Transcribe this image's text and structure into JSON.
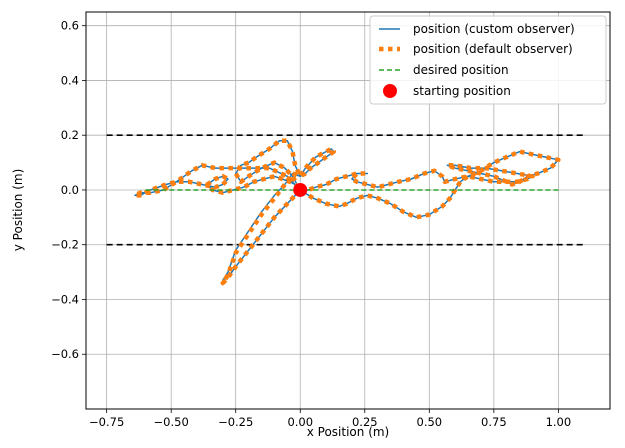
{
  "chart_data": {
    "type": "line",
    "title": "",
    "xlabel": "x Position (m)",
    "ylabel": "y Position (m)",
    "xlim": [
      -0.83,
      1.2
    ],
    "ylim": [
      -0.8,
      0.65
    ],
    "xticks": [
      -0.75,
      -0.5,
      -0.25,
      0.0,
      0.25,
      0.5,
      0.75,
      1.0
    ],
    "xtick_labels": [
      "−0.75",
      "−0.50",
      "−0.25",
      "0.00",
      "0.25",
      "0.50",
      "0.75",
      "1.00"
    ],
    "yticks": [
      -0.6,
      -0.4,
      -0.2,
      0.0,
      0.2,
      0.4,
      0.6
    ],
    "ytick_labels": [
      "−0.6",
      "−0.4",
      "−0.2",
      "0.0",
      "0.2",
      "0.4",
      "0.6"
    ],
    "grid": true,
    "legend_position": "top-right",
    "series": [
      {
        "name": "position (custom observer)",
        "style": "solid",
        "color": "#1f77b4",
        "x": [
          0.0,
          -0.05,
          -0.1,
          -0.15,
          -0.2,
          -0.25,
          -0.28,
          -0.3,
          -0.28,
          -0.25,
          -0.2,
          -0.15,
          -0.1,
          -0.06,
          -0.03,
          0.0,
          0.02,
          0.04,
          0.06,
          0.08,
          0.1,
          0.12,
          0.13,
          0.1,
          0.07,
          0.04,
          0.02,
          0.0,
          -0.02,
          -0.03,
          -0.05,
          -0.08,
          -0.12,
          -0.17,
          -0.2,
          -0.23,
          -0.25,
          -0.23,
          -0.2,
          -0.15,
          -0.1,
          -0.06,
          -0.03,
          0.0,
          -0.05,
          -0.12,
          -0.2,
          -0.28,
          -0.33,
          -0.38,
          -0.42,
          -0.48,
          -0.53,
          -0.58,
          -0.62,
          -0.64,
          -0.62,
          -0.58,
          -0.52,
          -0.48,
          -0.43,
          -0.38,
          -0.33,
          -0.3,
          -0.28,
          -0.3,
          -0.33,
          -0.36,
          -0.34,
          -0.3,
          -0.26,
          -0.22,
          -0.18,
          -0.14,
          -0.1,
          -0.07,
          -0.04,
          -0.02,
          0.0,
          0.05,
          0.1,
          0.15,
          0.18,
          0.2,
          0.22,
          0.26,
          0.3,
          0.35,
          0.4,
          0.45,
          0.5,
          0.55,
          0.58,
          0.6,
          0.62,
          0.65,
          0.7,
          0.75,
          0.8,
          0.85,
          0.9,
          0.95,
          1.0,
          0.97,
          0.92,
          0.88,
          0.85,
          0.82,
          0.8,
          0.75,
          0.7,
          0.65,
          0.6,
          0.57,
          0.6,
          0.66,
          0.72,
          0.78,
          0.84,
          0.9,
          0.88,
          0.84,
          0.8,
          0.75,
          0.7,
          0.65,
          0.6,
          0.56,
          0.55,
          0.52,
          0.48,
          0.43,
          0.38,
          0.34,
          0.3,
          0.26,
          0.22,
          0.2,
          0.22,
          0.26,
          0.22,
          0.18,
          0.14,
          0.12,
          0.1,
          0.06,
          0.03,
          0.0
        ],
        "y": [
          0.0,
          -0.05,
          -0.1,
          -0.16,
          -0.22,
          -0.28,
          -0.32,
          -0.33,
          -0.3,
          -0.22,
          -0.15,
          -0.08,
          -0.02,
          0.02,
          0.06,
          0.05,
          0.08,
          0.1,
          0.12,
          0.13,
          0.14,
          0.15,
          0.14,
          0.12,
          0.1,
          0.08,
          0.06,
          0.05,
          0.09,
          0.14,
          0.18,
          0.18,
          0.15,
          0.12,
          0.1,
          0.09,
          0.06,
          0.03,
          0.05,
          0.08,
          0.1,
          0.08,
          0.05,
          0.0,
          0.05,
          0.08,
          0.08,
          0.08,
          0.08,
          0.09,
          0.07,
          0.03,
          0.0,
          -0.01,
          -0.01,
          -0.02,
          -0.02,
          0.0,
          0.02,
          0.03,
          0.03,
          0.02,
          0.01,
          0.02,
          0.04,
          0.05,
          0.04,
          0.02,
          0.0,
          -0.01,
          0.0,
          0.01,
          0.03,
          0.04,
          0.05,
          0.04,
          0.03,
          0.02,
          0.0,
          -0.03,
          -0.05,
          -0.06,
          -0.05,
          -0.04,
          -0.03,
          -0.02,
          -0.03,
          -0.05,
          -0.08,
          -0.1,
          -0.09,
          -0.06,
          -0.03,
          0.0,
          0.03,
          0.05,
          0.07,
          0.1,
          0.12,
          0.14,
          0.13,
          0.12,
          0.11,
          0.08,
          0.06,
          0.05,
          0.03,
          0.02,
          0.03,
          0.05,
          0.06,
          0.07,
          0.08,
          0.09,
          0.09,
          0.08,
          0.08,
          0.07,
          0.06,
          0.05,
          0.04,
          0.03,
          0.03,
          0.03,
          0.04,
          0.05,
          0.04,
          0.03,
          0.05,
          0.07,
          0.06,
          0.04,
          0.03,
          0.02,
          0.01,
          0.02,
          0.03,
          0.04,
          0.06,
          0.06,
          0.06,
          0.05,
          0.04,
          0.03,
          0.02,
          0.01,
          0.0,
          0.0
        ]
      },
      {
        "name": "position (default observer)",
        "style": "dotted",
        "color": "#ff7f0e",
        "x": [
          0.0,
          -0.05,
          -0.1,
          -0.15,
          -0.2,
          -0.25,
          -0.28,
          -0.3,
          -0.28,
          -0.25,
          -0.2,
          -0.15,
          -0.1,
          -0.06,
          -0.03,
          0.0,
          0.02,
          0.04,
          0.06,
          0.08,
          0.1,
          0.12,
          0.13,
          0.1,
          0.07,
          0.04,
          0.02,
          0.0,
          -0.02,
          -0.03,
          -0.05,
          -0.08,
          -0.12,
          -0.17,
          -0.2,
          -0.23,
          -0.25,
          -0.23,
          -0.2,
          -0.15,
          -0.1,
          -0.06,
          -0.03,
          0.0,
          -0.05,
          -0.12,
          -0.2,
          -0.28,
          -0.33,
          -0.38,
          -0.42,
          -0.48,
          -0.53,
          -0.58,
          -0.62,
          -0.64,
          -0.62,
          -0.58,
          -0.52,
          -0.48,
          -0.43,
          -0.38,
          -0.33,
          -0.3,
          -0.28,
          -0.3,
          -0.33,
          -0.36,
          -0.34,
          -0.3,
          -0.26,
          -0.22,
          -0.18,
          -0.14,
          -0.1,
          -0.07,
          -0.04,
          -0.02,
          0.0,
          0.05,
          0.1,
          0.15,
          0.18,
          0.2,
          0.22,
          0.26,
          0.3,
          0.35,
          0.4,
          0.45,
          0.5,
          0.55,
          0.58,
          0.6,
          0.62,
          0.65,
          0.7,
          0.75,
          0.8,
          0.85,
          0.9,
          0.95,
          1.0,
          0.97,
          0.92,
          0.88,
          0.85,
          0.82,
          0.8,
          0.75,
          0.7,
          0.65,
          0.6,
          0.57,
          0.6,
          0.66,
          0.72,
          0.78,
          0.84,
          0.9,
          0.88,
          0.84,
          0.8,
          0.75,
          0.7,
          0.65,
          0.6,
          0.56,
          0.55,
          0.52,
          0.48,
          0.43,
          0.38,
          0.34,
          0.3,
          0.26,
          0.22,
          0.2,
          0.22,
          0.26,
          0.22,
          0.18,
          0.14,
          0.12,
          0.1,
          0.06,
          0.03,
          0.0
        ],
        "y": [
          0.0,
          -0.05,
          -0.1,
          -0.16,
          -0.22,
          -0.28,
          -0.32,
          -0.34,
          -0.31,
          -0.23,
          -0.16,
          -0.09,
          -0.03,
          0.02,
          0.06,
          0.05,
          0.08,
          0.1,
          0.12,
          0.13,
          0.14,
          0.15,
          0.14,
          0.12,
          0.1,
          0.08,
          0.06,
          0.05,
          0.09,
          0.14,
          0.18,
          0.18,
          0.15,
          0.12,
          0.1,
          0.09,
          0.06,
          0.03,
          0.05,
          0.08,
          0.1,
          0.08,
          0.05,
          0.0,
          0.05,
          0.08,
          0.08,
          0.08,
          0.08,
          0.09,
          0.07,
          0.03,
          0.0,
          -0.01,
          -0.01,
          -0.02,
          -0.02,
          0.0,
          0.02,
          0.03,
          0.03,
          0.02,
          0.01,
          0.02,
          0.04,
          0.05,
          0.04,
          0.02,
          0.0,
          -0.01,
          0.0,
          0.01,
          0.03,
          0.04,
          0.05,
          0.04,
          0.03,
          0.02,
          0.0,
          -0.03,
          -0.05,
          -0.06,
          -0.05,
          -0.04,
          -0.03,
          -0.02,
          -0.03,
          -0.05,
          -0.08,
          -0.1,
          -0.09,
          -0.06,
          -0.03,
          0.0,
          0.03,
          0.05,
          0.07,
          0.1,
          0.12,
          0.14,
          0.13,
          0.12,
          0.11,
          0.08,
          0.06,
          0.05,
          0.03,
          0.02,
          0.03,
          0.05,
          0.06,
          0.07,
          0.08,
          0.09,
          0.09,
          0.08,
          0.08,
          0.07,
          0.06,
          0.05,
          0.04,
          0.03,
          0.03,
          0.03,
          0.04,
          0.05,
          0.04,
          0.03,
          0.05,
          0.07,
          0.06,
          0.04,
          0.03,
          0.02,
          0.01,
          0.02,
          0.03,
          0.04,
          0.06,
          0.06,
          0.06,
          0.05,
          0.04,
          0.03,
          0.02,
          0.01,
          0.0,
          0.0
        ]
      },
      {
        "name": "desired position",
        "style": "dashed",
        "color": "#2ca02c",
        "x": [
          -0.6,
          1.0
        ],
        "y": [
          0.0,
          0.0
        ]
      }
    ],
    "starting_position": {
      "name": "starting position",
      "x": 0.0,
      "y": 0.0,
      "color": "#ff0000"
    },
    "boundaries": [
      {
        "x": [
          -0.75,
          1.1
        ],
        "y": [
          0.2,
          0.2
        ],
        "color": "#000000",
        "style": "dashed"
      },
      {
        "x": [
          -0.75,
          1.1
        ],
        "y": [
          -0.2,
          -0.2
        ],
        "color": "#000000",
        "style": "dashed"
      }
    ]
  }
}
